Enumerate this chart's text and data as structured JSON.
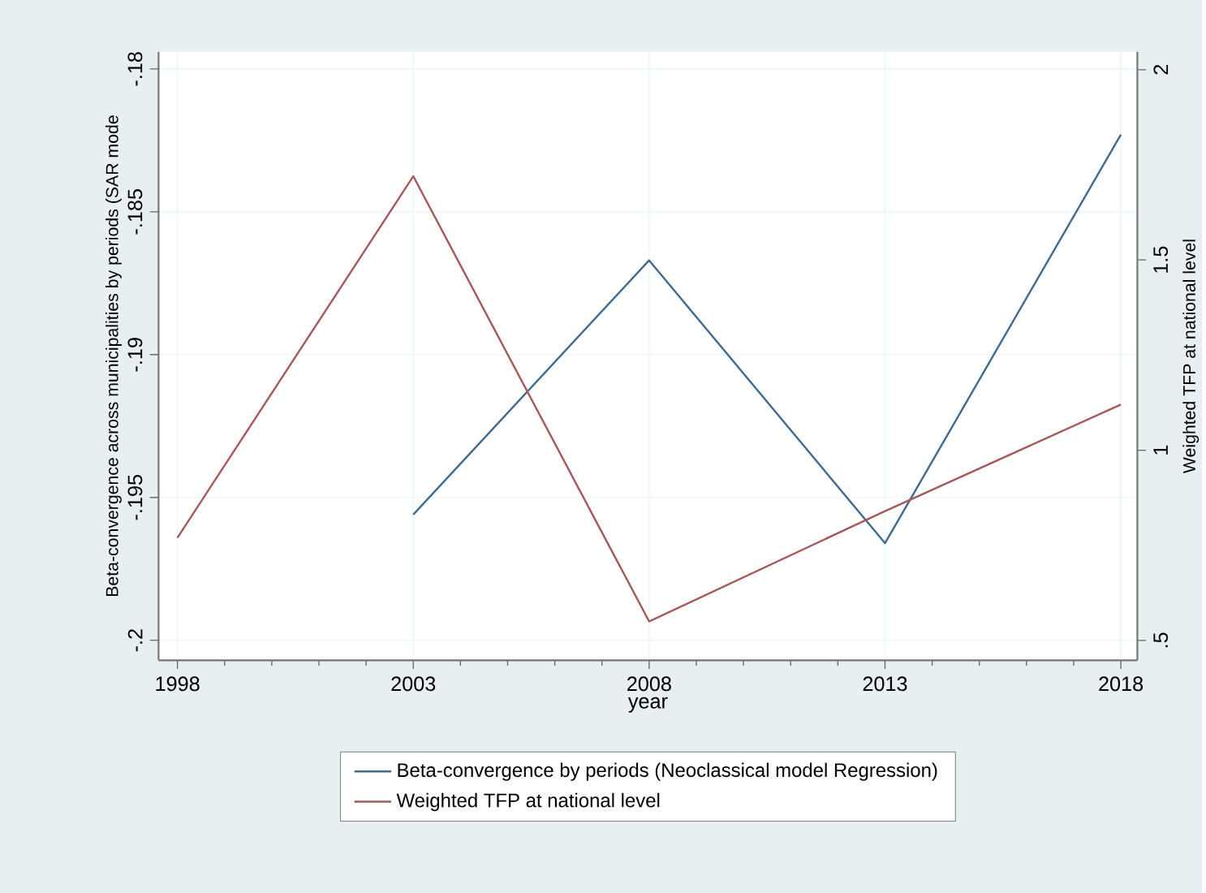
{
  "chart_data": {
    "type": "line",
    "xlabel": "year",
    "ylabel": "Beta-convergence across municipalities by periods (SAR mode",
    "y2label": "Weighted TFP at national level",
    "x": [
      1998,
      2003,
      2008,
      2013,
      2018
    ],
    "series": [
      {
        "name": "Beta-convergence by periods (Neoclassical model Regression)",
        "color": "#3f6a8e",
        "values": [
          null,
          -0.1956,
          -0.1867,
          -0.1966,
          -0.1823
        ]
      },
      {
        "name": "Weighted TFP at national level",
        "color": "#a4585a",
        "axis": "y2",
        "values": [
          0.77,
          1.72,
          0.55,
          0.84,
          1.12
        ]
      }
    ],
    "xlim": [
      1997.6,
      2018.35
    ],
    "xticks": [
      1998,
      2003,
      2008,
      2013,
      2018
    ],
    "ylim": [
      -0.2007,
      -0.1794
    ],
    "yticks": [
      {
        "value": -0.2,
        "label": "-.2"
      },
      {
        "value": -0.195,
        "label": "-.195"
      },
      {
        "value": -0.19,
        "label": "-.19"
      },
      {
        "value": -0.185,
        "label": "-.185"
      },
      {
        "value": -0.18,
        "label": "-.18"
      }
    ],
    "y2lim": [
      0.448,
      2.047
    ],
    "y2ticks": [
      {
        "value": 0.5,
        "label": ".5"
      },
      1,
      {
        "value": 1.5,
        "label": "1.5"
      },
      2
    ],
    "grid": true,
    "legend": "bottom",
    "line_style": "solid",
    "marker": "none"
  }
}
